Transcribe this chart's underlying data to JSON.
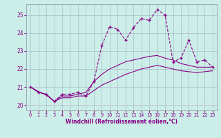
{
  "xlabel": "Windchill (Refroidissement éolien,°C)",
  "xlim": [
    -0.5,
    23.5
  ],
  "ylim": [
    19.7,
    25.6
  ],
  "yticks": [
    20,
    21,
    22,
    23,
    24,
    25
  ],
  "xticks": [
    0,
    1,
    2,
    3,
    4,
    5,
    6,
    7,
    8,
    9,
    10,
    11,
    12,
    13,
    14,
    15,
    16,
    17,
    18,
    19,
    20,
    21,
    22,
    23
  ],
  "background_color": "#cceee8",
  "grid_color": "#aabbcc",
  "line_color": "#880088",
  "line1_x": [
    0,
    1,
    2,
    3,
    4,
    5,
    6,
    7,
    8,
    9,
    10,
    11,
    12,
    13,
    14,
    15,
    16,
    17,
    18,
    19,
    20,
    21,
    22,
    23
  ],
  "line1_y": [
    21.0,
    20.7,
    20.6,
    20.2,
    20.6,
    20.6,
    20.7,
    20.5,
    21.3,
    23.3,
    24.35,
    24.2,
    23.6,
    24.3,
    24.8,
    24.7,
    25.3,
    25.0,
    22.4,
    22.6,
    23.6,
    22.4,
    22.5,
    22.1
  ],
  "line2_x": [
    0,
    1,
    2,
    3,
    4,
    5,
    6,
    7,
    8,
    9,
    10,
    11,
    12,
    13,
    14,
    15,
    16,
    17,
    18,
    19,
    20,
    21,
    22,
    23
  ],
  "line2_y": [
    21.0,
    20.7,
    20.6,
    20.2,
    20.5,
    20.5,
    20.6,
    20.7,
    21.3,
    21.7,
    22.0,
    22.2,
    22.4,
    22.5,
    22.6,
    22.7,
    22.75,
    22.6,
    22.5,
    22.3,
    22.2,
    22.1,
    22.1,
    22.1
  ],
  "line3_x": [
    0,
    1,
    2,
    3,
    4,
    5,
    6,
    7,
    8,
    9,
    10,
    11,
    12,
    13,
    14,
    15,
    16,
    17,
    18,
    19,
    20,
    21,
    22,
    23
  ],
  "line3_y": [
    21.0,
    20.75,
    20.55,
    20.2,
    20.4,
    20.4,
    20.5,
    20.5,
    20.8,
    21.1,
    21.3,
    21.5,
    21.7,
    21.85,
    22.0,
    22.1,
    22.2,
    22.1,
    22.0,
    21.9,
    21.85,
    21.8,
    21.85,
    21.9
  ]
}
